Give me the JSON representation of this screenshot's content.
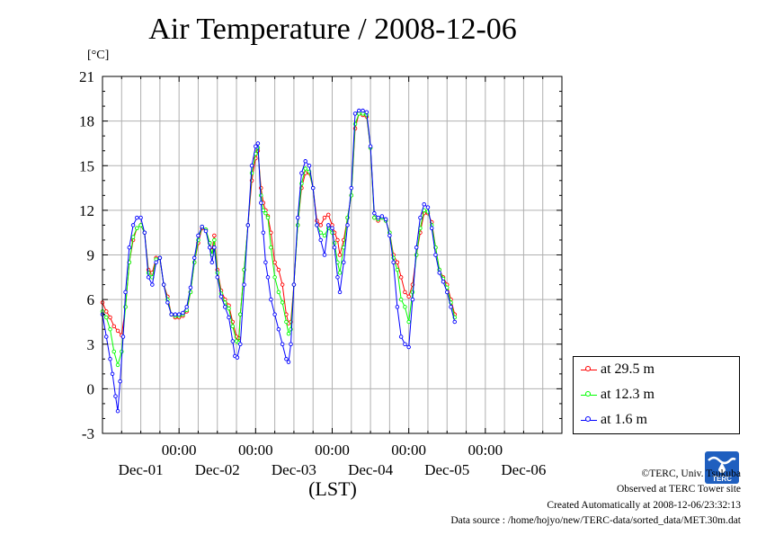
{
  "title": "Air Temperature / 2008-12-06",
  "unit": "[°C]",
  "xlabel": "(LST)",
  "legend": [
    {
      "label": "at 29.5 m",
      "color": "#ff0000"
    },
    {
      "label": "at 12.3 m",
      "color": "#00ff00"
    },
    {
      "label": "at 1.6 m",
      "color": "#0000ff"
    }
  ],
  "logo_text": "TERC",
  "credits": {
    "line1": "©TERC, Univ. Tsukuba",
    "line2": "Observed at TERC Tower site",
    "line3": "Created Automatically at 2008-12-06/23:32:13",
    "line4": "Data source : /home/hojyo/new/TERC-data/sorted_data/MET.30m.dat"
  },
  "chart_data": {
    "type": "line",
    "title": "Air Temperature / 2008-12-06",
    "ylabel": "[°C]",
    "xlabel": "(LST)",
    "ylim": [
      -3,
      21
    ],
    "yticks": [
      -3,
      0,
      3,
      6,
      9,
      12,
      15,
      18,
      21
    ],
    "xlim": [
      -1,
      5
    ],
    "x_unit": "days relative to Dec-01 00:00",
    "xtick_time_label": "00:00",
    "xtick_dates": [
      "Dec-01",
      "Dec-02",
      "Dec-03",
      "Dec-04",
      "Dec-05",
      "Dec-06"
    ],
    "grid": true,
    "legend_position": "right, below plot top",
    "series": [
      {
        "name": "at 29.5 m",
        "color": "#ff0000",
        "points": [
          [
            -1.0,
            5.8
          ],
          [
            -0.95,
            5.2
          ],
          [
            -0.9,
            4.8
          ],
          [
            -0.85,
            4.2
          ],
          [
            -0.8,
            3.9
          ],
          [
            -0.75,
            3.6
          ],
          [
            -0.7,
            5.5
          ],
          [
            -0.65,
            8.5
          ],
          [
            -0.6,
            10.0
          ],
          [
            -0.55,
            10.8
          ],
          [
            -0.5,
            11.0
          ],
          [
            -0.45,
            10.5
          ],
          [
            -0.4,
            8.0
          ],
          [
            -0.35,
            7.8
          ],
          [
            -0.3,
            8.8
          ],
          [
            -0.25,
            8.8
          ],
          [
            -0.2,
            7.0
          ],
          [
            -0.15,
            6.2
          ],
          [
            -0.1,
            5.0
          ],
          [
            -0.05,
            4.8
          ],
          [
            0.0,
            4.8
          ],
          [
            0.05,
            4.9
          ],
          [
            0.1,
            5.2
          ],
          [
            0.15,
            6.5
          ],
          [
            0.2,
            8.5
          ],
          [
            0.25,
            9.8
          ],
          [
            0.3,
            10.8
          ],
          [
            0.35,
            10.7
          ],
          [
            0.4,
            9.8
          ],
          [
            0.43,
            9.3
          ],
          [
            0.46,
            10.3
          ],
          [
            0.5,
            8.0
          ],
          [
            0.55,
            6.6
          ],
          [
            0.6,
            6.0
          ],
          [
            0.65,
            5.6
          ],
          [
            0.7,
            4.5
          ],
          [
            0.75,
            3.5
          ],
          [
            0.78,
            3.4
          ],
          [
            0.8,
            5.0
          ],
          [
            0.85,
            8.0
          ],
          [
            0.9,
            11.0
          ],
          [
            0.95,
            14.0
          ],
          [
            1.0,
            15.5
          ],
          [
            1.03,
            16.0
          ],
          [
            1.07,
            13.5
          ],
          [
            1.1,
            12.5
          ],
          [
            1.13,
            12.0
          ],
          [
            1.16,
            11.6
          ],
          [
            1.2,
            10.5
          ],
          [
            1.25,
            8.5
          ],
          [
            1.3,
            8.0
          ],
          [
            1.35,
            7.0
          ],
          [
            1.4,
            5.0
          ],
          [
            1.43,
            4.4
          ],
          [
            1.46,
            4.5
          ],
          [
            1.5,
            7.0
          ],
          [
            1.55,
            11.0
          ],
          [
            1.6,
            13.5
          ],
          [
            1.65,
            14.5
          ],
          [
            1.7,
            14.5
          ],
          [
            1.75,
            13.5
          ],
          [
            1.8,
            11.3
          ],
          [
            1.85,
            11.0
          ],
          [
            1.9,
            11.5
          ],
          [
            1.95,
            11.7
          ],
          [
            2.0,
            11.0
          ],
          [
            2.03,
            10.5
          ],
          [
            2.07,
            10.0
          ],
          [
            2.1,
            9.0
          ],
          [
            2.15,
            10.0
          ],
          [
            2.2,
            11.5
          ],
          [
            2.25,
            13.0
          ],
          [
            2.3,
            17.5
          ],
          [
            2.35,
            18.5
          ],
          [
            2.4,
            18.4
          ],
          [
            2.45,
            18.3
          ],
          [
            2.5,
            16.2
          ],
          [
            2.55,
            11.5
          ],
          [
            2.6,
            11.3
          ],
          [
            2.65,
            11.5
          ],
          [
            2.7,
            11.3
          ],
          [
            2.75,
            10.5
          ],
          [
            2.8,
            9.0
          ],
          [
            2.85,
            8.5
          ],
          [
            2.9,
            7.5
          ],
          [
            2.95,
            6.5
          ],
          [
            3.0,
            6.2
          ],
          [
            3.05,
            7.0
          ],
          [
            3.1,
            9.0
          ],
          [
            3.15,
            10.5
          ],
          [
            3.2,
            11.8
          ],
          [
            3.25,
            11.8
          ],
          [
            3.3,
            11.2
          ],
          [
            3.35,
            9.5
          ],
          [
            3.4,
            8.0
          ],
          [
            3.45,
            7.5
          ],
          [
            3.5,
            7.0
          ],
          [
            3.55,
            6.0
          ],
          [
            3.6,
            5.0
          ]
        ]
      },
      {
        "name": "at 12.3 m",
        "color": "#00ff00",
        "points": [
          [
            -1.0,
            5.2
          ],
          [
            -0.95,
            4.8
          ],
          [
            -0.9,
            4.0
          ],
          [
            -0.85,
            2.5
          ],
          [
            -0.8,
            1.6
          ],
          [
            -0.75,
            2.5
          ],
          [
            -0.7,
            5.5
          ],
          [
            -0.65,
            8.5
          ],
          [
            -0.6,
            10.2
          ],
          [
            -0.55,
            10.8
          ],
          [
            -0.5,
            11.0
          ],
          [
            -0.45,
            10.5
          ],
          [
            -0.4,
            7.8
          ],
          [
            -0.35,
            7.5
          ],
          [
            -0.3,
            8.7
          ],
          [
            -0.25,
            8.8
          ],
          [
            -0.2,
            7.0
          ],
          [
            -0.15,
            6.0
          ],
          [
            -0.1,
            5.0
          ],
          [
            -0.05,
            4.9
          ],
          [
            0.0,
            4.9
          ],
          [
            0.05,
            5.0
          ],
          [
            0.1,
            5.3
          ],
          [
            0.15,
            6.5
          ],
          [
            0.2,
            8.5
          ],
          [
            0.25,
            10.0
          ],
          [
            0.3,
            10.9
          ],
          [
            0.35,
            10.7
          ],
          [
            0.4,
            9.8
          ],
          [
            0.43,
            9.0
          ],
          [
            0.46,
            10.0
          ],
          [
            0.5,
            7.8
          ],
          [
            0.55,
            6.4
          ],
          [
            0.6,
            5.8
          ],
          [
            0.65,
            5.4
          ],
          [
            0.7,
            4.2
          ],
          [
            0.75,
            3.2
          ],
          [
            0.78,
            3.1
          ],
          [
            0.8,
            5.0
          ],
          [
            0.85,
            8.0
          ],
          [
            0.9,
            11.0
          ],
          [
            0.95,
            14.5
          ],
          [
            1.0,
            15.8
          ],
          [
            1.03,
            16.2
          ],
          [
            1.07,
            13.0
          ],
          [
            1.1,
            12.0
          ],
          [
            1.13,
            11.8
          ],
          [
            1.16,
            11.5
          ],
          [
            1.2,
            9.5
          ],
          [
            1.25,
            7.5
          ],
          [
            1.3,
            6.5
          ],
          [
            1.35,
            5.8
          ],
          [
            1.4,
            4.5
          ],
          [
            1.43,
            3.7
          ],
          [
            1.46,
            4.0
          ],
          [
            1.5,
            7.0
          ],
          [
            1.55,
            11.0
          ],
          [
            1.6,
            13.8
          ],
          [
            1.65,
            14.8
          ],
          [
            1.7,
            14.6
          ],
          [
            1.75,
            13.5
          ],
          [
            1.8,
            11.0
          ],
          [
            1.85,
            10.5
          ],
          [
            1.9,
            10.3
          ],
          [
            1.95,
            10.8
          ],
          [
            2.0,
            10.5
          ],
          [
            2.03,
            9.8
          ],
          [
            2.07,
            8.5
          ],
          [
            2.1,
            7.8
          ],
          [
            2.15,
            9.5
          ],
          [
            2.2,
            11.5
          ],
          [
            2.25,
            13.0
          ],
          [
            2.3,
            17.8
          ],
          [
            2.35,
            18.5
          ],
          [
            2.4,
            18.5
          ],
          [
            2.45,
            18.4
          ],
          [
            2.5,
            16.2
          ],
          [
            2.55,
            11.5
          ],
          [
            2.6,
            11.4
          ],
          [
            2.65,
            11.5
          ],
          [
            2.7,
            11.3
          ],
          [
            2.75,
            10.5
          ],
          [
            2.8,
            8.8
          ],
          [
            2.85,
            8.0
          ],
          [
            2.9,
            6.0
          ],
          [
            2.95,
            5.5
          ],
          [
            3.0,
            4.5
          ],
          [
            3.05,
            6.5
          ],
          [
            3.1,
            9.0
          ],
          [
            3.15,
            10.8
          ],
          [
            3.2,
            12.0
          ],
          [
            3.25,
            11.9
          ],
          [
            3.3,
            11.0
          ],
          [
            3.35,
            9.5
          ],
          [
            3.4,
            8.0
          ],
          [
            3.45,
            7.4
          ],
          [
            3.5,
            6.8
          ],
          [
            3.55,
            5.8
          ],
          [
            3.6,
            4.8
          ]
        ]
      },
      {
        "name": "at 1.6 m",
        "color": "#0000ff",
        "points": [
          [
            -1.0,
            5.0
          ],
          [
            -0.95,
            3.5
          ],
          [
            -0.9,
            2.0
          ],
          [
            -0.87,
            1.0
          ],
          [
            -0.83,
            -0.5
          ],
          [
            -0.8,
            -1.5
          ],
          [
            -0.77,
            0.5
          ],
          [
            -0.73,
            3.5
          ],
          [
            -0.7,
            6.5
          ],
          [
            -0.65,
            9.5
          ],
          [
            -0.6,
            11.0
          ],
          [
            -0.55,
            11.5
          ],
          [
            -0.5,
            11.5
          ],
          [
            -0.45,
            10.5
          ],
          [
            -0.4,
            7.5
          ],
          [
            -0.35,
            7.0
          ],
          [
            -0.3,
            8.5
          ],
          [
            -0.25,
            8.8
          ],
          [
            -0.2,
            7.0
          ],
          [
            -0.15,
            5.8
          ],
          [
            -0.1,
            5.0
          ],
          [
            -0.05,
            5.0
          ],
          [
            0.0,
            5.0
          ],
          [
            0.05,
            5.1
          ],
          [
            0.1,
            5.5
          ],
          [
            0.15,
            6.8
          ],
          [
            0.2,
            8.8
          ],
          [
            0.25,
            10.3
          ],
          [
            0.3,
            10.9
          ],
          [
            0.35,
            10.6
          ],
          [
            0.4,
            9.5
          ],
          [
            0.43,
            8.5
          ],
          [
            0.46,
            9.5
          ],
          [
            0.5,
            7.5
          ],
          [
            0.55,
            6.2
          ],
          [
            0.6,
            5.5
          ],
          [
            0.65,
            4.8
          ],
          [
            0.7,
            3.2
          ],
          [
            0.73,
            2.2
          ],
          [
            0.76,
            2.1
          ],
          [
            0.8,
            3.0
          ],
          [
            0.85,
            7.0
          ],
          [
            0.9,
            11.0
          ],
          [
            0.95,
            15.0
          ],
          [
            1.0,
            16.3
          ],
          [
            1.03,
            16.5
          ],
          [
            1.07,
            12.5
          ],
          [
            1.1,
            10.5
          ],
          [
            1.13,
            8.5
          ],
          [
            1.16,
            7.5
          ],
          [
            1.2,
            6.0
          ],
          [
            1.25,
            5.0
          ],
          [
            1.3,
            4.0
          ],
          [
            1.35,
            3.0
          ],
          [
            1.4,
            2.0
          ],
          [
            1.43,
            1.8
          ],
          [
            1.46,
            3.0
          ],
          [
            1.5,
            7.0
          ],
          [
            1.55,
            11.5
          ],
          [
            1.6,
            14.5
          ],
          [
            1.65,
            15.3
          ],
          [
            1.7,
            15.0
          ],
          [
            1.75,
            13.5
          ],
          [
            1.8,
            11.0
          ],
          [
            1.85,
            10.0
          ],
          [
            1.9,
            9.0
          ],
          [
            1.95,
            11.0
          ],
          [
            2.0,
            10.8
          ],
          [
            2.03,
            9.5
          ],
          [
            2.07,
            7.5
          ],
          [
            2.1,
            6.5
          ],
          [
            2.15,
            8.5
          ],
          [
            2.2,
            11.0
          ],
          [
            2.25,
            13.5
          ],
          [
            2.3,
            18.5
          ],
          [
            2.35,
            18.7
          ],
          [
            2.4,
            18.7
          ],
          [
            2.45,
            18.6
          ],
          [
            2.5,
            16.3
          ],
          [
            2.55,
            11.8
          ],
          [
            2.6,
            11.5
          ],
          [
            2.65,
            11.6
          ],
          [
            2.7,
            11.4
          ],
          [
            2.75,
            10.3
          ],
          [
            2.8,
            8.5
          ],
          [
            2.85,
            5.5
          ],
          [
            2.9,
            3.5
          ],
          [
            2.95,
            3.0
          ],
          [
            3.0,
            2.8
          ],
          [
            3.05,
            6.0
          ],
          [
            3.1,
            9.5
          ],
          [
            3.15,
            11.5
          ],
          [
            3.2,
            12.4
          ],
          [
            3.25,
            12.2
          ],
          [
            3.3,
            10.8
          ],
          [
            3.35,
            9.0
          ],
          [
            3.4,
            7.8
          ],
          [
            3.45,
            7.2
          ],
          [
            3.5,
            6.5
          ],
          [
            3.55,
            5.5
          ],
          [
            3.6,
            4.5
          ]
        ]
      }
    ]
  }
}
